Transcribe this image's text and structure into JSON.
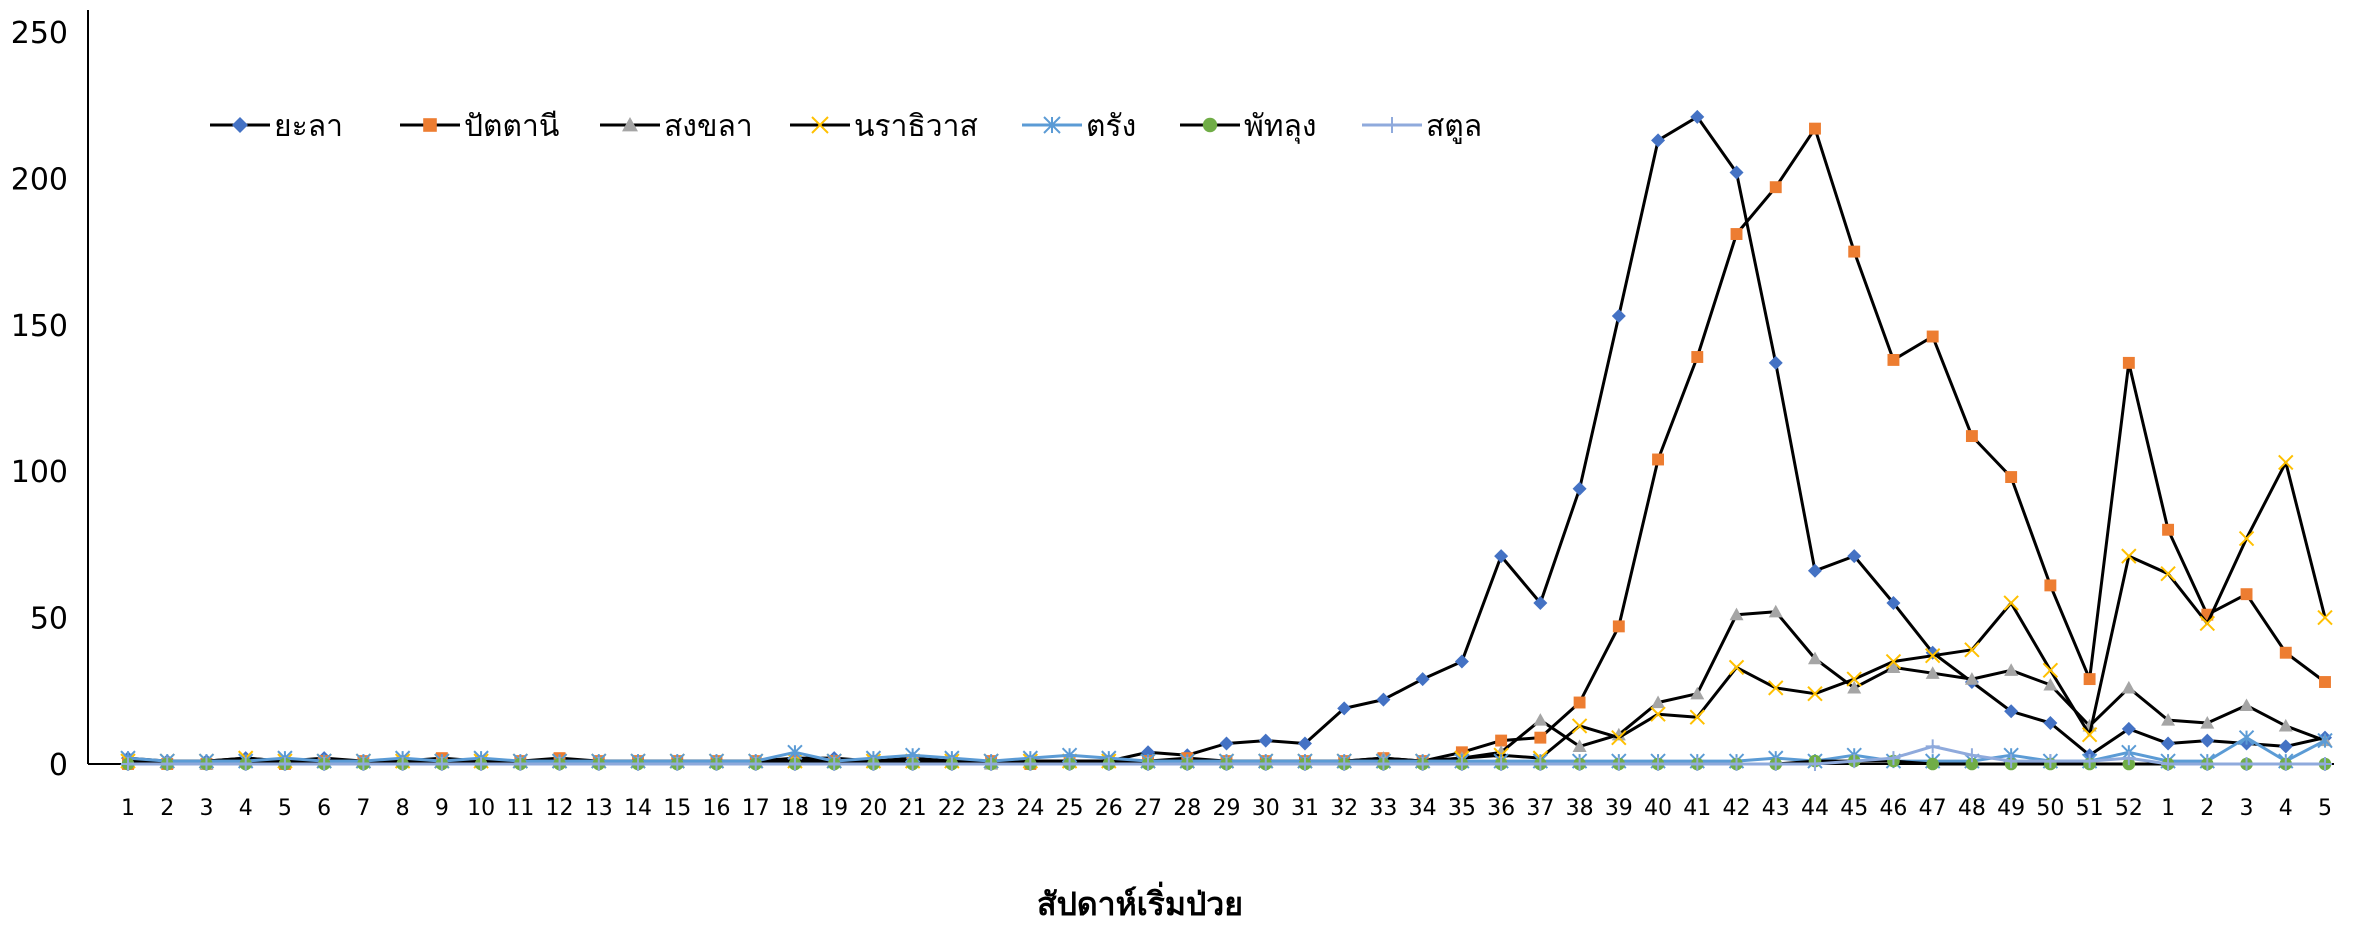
{
  "chart_data": {
    "type": "line",
    "title": "",
    "xlabel": "สัปดาห์เริ่มป่วย",
    "ylabel": "",
    "ylim": [
      0,
      250
    ],
    "yticks": [
      0,
      50,
      100,
      150,
      200,
      250
    ],
    "grid": false,
    "legend_position": "top-left",
    "categories": [
      "1",
      "2",
      "3",
      "4",
      "5",
      "6",
      "7",
      "8",
      "9",
      "10",
      "11",
      "12",
      "13",
      "14",
      "15",
      "16",
      "17",
      "18",
      "19",
      "20",
      "21",
      "22",
      "23",
      "24",
      "25",
      "26",
      "27",
      "28",
      "29",
      "30",
      "31",
      "32",
      "33",
      "34",
      "35",
      "36",
      "37",
      "38",
      "39",
      "40",
      "41",
      "42",
      "43",
      "44",
      "45",
      "46",
      "47",
      "48",
      "49",
      "50",
      "51",
      "52",
      "1",
      "2",
      "3",
      "4",
      "5"
    ],
    "series": [
      {
        "name": "ยะลา",
        "color": "#4472C4",
        "marker": "diamond",
        "values": [
          2,
          1,
          1,
          2,
          1,
          2,
          1,
          1,
          1,
          1,
          1,
          1,
          1,
          1,
          1,
          1,
          1,
          2,
          2,
          1,
          2,
          1,
          1,
          1,
          1,
          1,
          4,
          3,
          7,
          8,
          7,
          19,
          22,
          29,
          35,
          71,
          55,
          94,
          153,
          213,
          221,
          202,
          137,
          66,
          71,
          55,
          38,
          28,
          18,
          14,
          3,
          12,
          7,
          8,
          7,
          6,
          9
        ]
      },
      {
        "name": "ปัตตานี",
        "color": "#ED7D31",
        "marker": "square",
        "values": [
          0,
          0,
          0,
          1,
          0,
          1,
          1,
          1,
          2,
          1,
          1,
          2,
          1,
          1,
          1,
          1,
          1,
          1,
          1,
          1,
          1,
          1,
          1,
          0,
          1,
          1,
          1,
          2,
          1,
          1,
          1,
          1,
          2,
          1,
          4,
          8,
          9,
          21,
          47,
          104,
          139,
          181,
          197,
          217,
          175,
          138,
          146,
          112,
          98,
          61,
          29,
          137,
          80,
          51,
          58,
          38,
          28
        ]
      },
      {
        "name": "สงขลา",
        "color": "#A5A5A5",
        "marker": "triangle",
        "values": [
          1,
          1,
          0,
          1,
          1,
          1,
          1,
          1,
          1,
          1,
          1,
          1,
          1,
          1,
          1,
          1,
          1,
          1,
          1,
          1,
          1,
          1,
          0,
          1,
          1,
          1,
          1,
          1,
          1,
          1,
          1,
          1,
          2,
          1,
          2,
          4,
          15,
          6,
          10,
          21,
          24,
          51,
          52,
          36,
          26,
          33,
          31,
          29,
          32,
          27,
          13,
          26,
          15,
          14,
          20,
          13,
          8
        ]
      },
      {
        "name": "นราธิวาส",
        "color": "#FFC000",
        "marker": "x",
        "values": [
          1,
          1,
          1,
          2,
          1,
          1,
          1,
          1,
          1,
          1,
          1,
          1,
          1,
          1,
          1,
          1,
          1,
          1,
          1,
          1,
          1,
          1,
          1,
          1,
          1,
          1,
          1,
          1,
          1,
          1,
          1,
          1,
          1,
          1,
          2,
          3,
          2,
          13,
          9,
          17,
          16,
          33,
          26,
          24,
          29,
          35,
          37,
          39,
          55,
          32,
          10,
          71,
          65,
          48,
          77,
          103,
          50
        ]
      },
      {
        "name": "ตรัง",
        "color": "#5B9BD5",
        "marker": "star",
        "values": [
          2,
          1,
          1,
          1,
          2,
          1,
          1,
          2,
          1,
          2,
          1,
          1,
          1,
          1,
          1,
          1,
          1,
          4,
          1,
          2,
          3,
          2,
          1,
          2,
          3,
          2,
          1,
          1,
          1,
          1,
          1,
          1,
          1,
          1,
          1,
          1,
          1,
          1,
          1,
          1,
          1,
          1,
          2,
          1,
          3,
          1,
          1,
          1,
          3,
          1,
          1,
          4,
          1,
          1,
          9,
          1,
          8
        ]
      },
      {
        "name": "พัทลุง",
        "color": "#70AD47",
        "marker": "circle",
        "values": [
          0,
          0,
          0,
          0,
          0,
          0,
          0,
          0,
          0,
          0,
          0,
          0,
          0,
          0,
          0,
          0,
          0,
          0,
          0,
          0,
          0,
          0,
          0,
          0,
          0,
          0,
          0,
          0,
          0,
          0,
          0,
          0,
          0,
          0,
          0,
          0,
          0,
          0,
          0,
          0,
          0,
          0,
          0,
          1,
          1,
          1,
          0,
          0,
          0,
          0,
          0,
          0,
          0,
          0,
          0,
          0,
          0
        ]
      },
      {
        "name": "สตูล",
        "color": "#8FAADC",
        "marker": "plus",
        "values": [
          0,
          0,
          0,
          0,
          0,
          0,
          0,
          0,
          0,
          0,
          0,
          0,
          0,
          0,
          0,
          0,
          0,
          0,
          0,
          0,
          0,
          0,
          0,
          0,
          0,
          0,
          0,
          0,
          0,
          0,
          0,
          0,
          0,
          0,
          0,
          0,
          0,
          0,
          0,
          0,
          0,
          0,
          0,
          0,
          1,
          2,
          6,
          3,
          1,
          1,
          1,
          2,
          0,
          0,
          0,
          0,
          0
        ]
      }
    ]
  }
}
